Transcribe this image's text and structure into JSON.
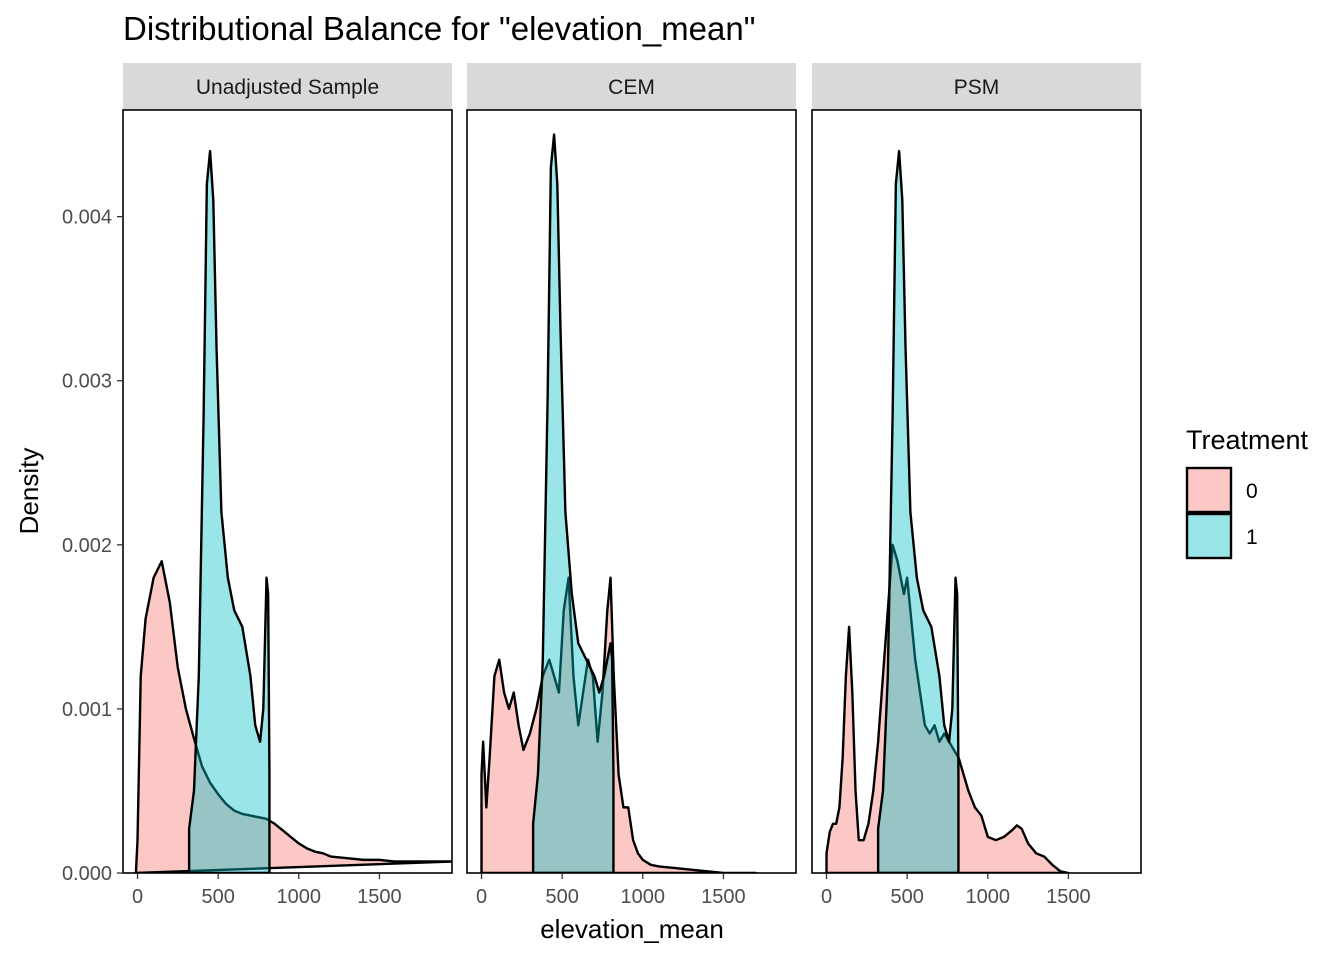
{
  "chart_data": {
    "type": "area",
    "title": "Distributional Balance for \"elevation_mean\"",
    "xlabel": "elevation_mean",
    "ylabel": "Density",
    "xlim": [
      -90,
      1950
    ],
    "ylim": [
      0,
      0.00465
    ],
    "x_ticks": [
      0,
      500,
      1000,
      1500
    ],
    "x_tick_labels": [
      "0",
      "500",
      "1000",
      "1500"
    ],
    "y_ticks": [
      0,
      0.001,
      0.002,
      0.003,
      0.004
    ],
    "y_tick_labels": [
      "0.000",
      "0.001",
      "0.002",
      "0.003",
      "0.004"
    ],
    "grid": false,
    "legend": {
      "title": "Treatment",
      "position": "right",
      "entries": [
        {
          "label": "0",
          "color": "#F8766D"
        },
        {
          "label": "1",
          "color": "#00BFC4"
        }
      ]
    },
    "panels": [
      {
        "label": "Unadjusted Sample",
        "series": [
          {
            "name": "0",
            "color": "#F8766D",
            "x": [
              -10,
              0,
              20,
              50,
              100,
              150,
              200,
              250,
              300,
              350,
              400,
              450,
              500,
              550,
              600,
              650,
              700,
              750,
              800,
              850,
              900,
              950,
              1000,
              1050,
              1100,
              1150,
              1200,
              1300,
              1400,
              1500,
              1600,
              1700,
              1800,
              1950
            ],
            "y": [
              0.0,
              0.0002,
              0.0012,
              0.00155,
              0.0018,
              0.0019,
              0.00165,
              0.00125,
              0.001,
              0.00082,
              0.00065,
              0.00055,
              0.00048,
              0.00042,
              0.00038,
              0.00036,
              0.00035,
              0.00034,
              0.00033,
              0.0003,
              0.00026,
              0.00022,
              0.00018,
              0.00015,
              0.00013,
              0.00012,
              0.0001,
              9e-05,
              8e-05,
              8e-05,
              7e-05,
              7e-05,
              7e-05,
              7e-05
            ]
          },
          {
            "name": "1",
            "color": "#00BFC4",
            "x": [
              320,
              320,
              350,
              380,
              410,
              430,
              450,
              470,
              490,
              520,
              560,
              600,
              650,
              700,
              730,
              760,
              780,
              790,
              800,
              810,
              818,
              818
            ],
            "y": [
              0.0,
              0.00027,
              0.0005,
              0.0012,
              0.0028,
              0.0042,
              0.0044,
              0.0041,
              0.0032,
              0.0022,
              0.0018,
              0.0016,
              0.0015,
              0.0012,
              0.0009,
              0.0008,
              0.001,
              0.0014,
              0.0018,
              0.0017,
              0.0006,
              0.0
            ]
          }
        ]
      },
      {
        "label": "CEM",
        "series": [
          {
            "name": "0",
            "color": "#F8766D",
            "x": [
              0,
              0,
              10,
              30,
              50,
              80,
              110,
              140,
              170,
              200,
              230,
              260,
              300,
              340,
              380,
              420,
              450,
              480,
              510,
              540,
              570,
              600,
              630,
              660,
              690,
              720,
              750,
              780,
              800,
              820,
              850,
              880,
              910,
              940,
              970,
              1000,
              1050,
              1100,
              1200,
              1300,
              1400,
              1500,
              1600,
              1700
            ],
            "y": [
              0.0,
              0.0006,
              0.0008,
              0.0004,
              0.0007,
              0.0012,
              0.0013,
              0.0011,
              0.001,
              0.0011,
              0.0009,
              0.00075,
              0.00085,
              0.001,
              0.0012,
              0.0013,
              0.0012,
              0.0011,
              0.0016,
              0.0018,
              0.0012,
              0.0009,
              0.0011,
              0.0013,
              0.0012,
              0.0008,
              0.0011,
              0.0016,
              0.0018,
              0.0012,
              0.0006,
              0.0004,
              0.0004,
              0.0002,
              0.00012,
              8e-05,
              5e-05,
              4e-05,
              3e-05,
              2e-05,
              1e-05,
              0.0,
              0.0,
              0.0
            ]
          },
          {
            "name": "1",
            "color": "#00BFC4",
            "x": [
              320,
              320,
              350,
              380,
              410,
              430,
              450,
              470,
              490,
              520,
              560,
              600,
              650,
              700,
              730,
              760,
              780,
              790,
              800,
              810,
              818,
              818
            ],
            "y": [
              0.0,
              0.0003,
              0.0006,
              0.0013,
              0.0029,
              0.0043,
              0.0045,
              0.0042,
              0.0033,
              0.0022,
              0.0017,
              0.0014,
              0.0013,
              0.0012,
              0.0011,
              0.0012,
              0.0013,
              0.00135,
              0.0014,
              0.0013,
              0.0006,
              0.0
            ]
          }
        ]
      },
      {
        "label": "PSM",
        "series": [
          {
            "name": "0",
            "color": "#F8766D",
            "x": [
              0,
              0,
              20,
              40,
              60,
              80,
              100,
              120,
              140,
              160,
              180,
              200,
              230,
              260,
              290,
              320,
              350,
              380,
              410,
              440,
              460,
              480,
              500,
              520,
              550,
              580,
              610,
              640,
              670,
              700,
              730,
              760,
              790,
              820,
              850,
              880,
              920,
              960,
              1000,
              1050,
              1100,
              1150,
              1180,
              1210,
              1250,
              1300,
              1350,
              1400,
              1450,
              1500
            ],
            "y": [
              0.0,
              0.00012,
              0.00025,
              0.0003,
              0.0003,
              0.0004,
              0.0007,
              0.0012,
              0.0015,
              0.0011,
              0.0005,
              0.0002,
              0.0002,
              0.0003,
              0.0005,
              0.0008,
              0.0012,
              0.0016,
              0.002,
              0.0019,
              0.0018,
              0.0017,
              0.0018,
              0.0016,
              0.0013,
              0.0011,
              0.0009,
              0.00085,
              0.0009,
              0.0008,
              0.00085,
              0.0008,
              0.00075,
              0.0007,
              0.0006,
              0.0005,
              0.0004,
              0.00035,
              0.00022,
              0.0002,
              0.00022,
              0.00026,
              0.00029,
              0.00027,
              0.00018,
              0.00012,
              0.0001,
              5e-05,
              1e-05,
              0.0
            ]
          },
          {
            "name": "1",
            "color": "#00BFC4",
            "x": [
              320,
              320,
              350,
              380,
              410,
              430,
              450,
              470,
              490,
              520,
              560,
              600,
              650,
              700,
              730,
              760,
              780,
              790,
              800,
              810,
              818,
              818
            ],
            "y": [
              0.0,
              0.00027,
              0.0005,
              0.0012,
              0.0028,
              0.0042,
              0.0044,
              0.0041,
              0.0032,
              0.0022,
              0.0018,
              0.0016,
              0.0015,
              0.0012,
              0.0009,
              0.0008,
              0.001,
              0.0014,
              0.0018,
              0.0017,
              0.0006,
              0.0
            ]
          }
        ]
      }
    ]
  }
}
